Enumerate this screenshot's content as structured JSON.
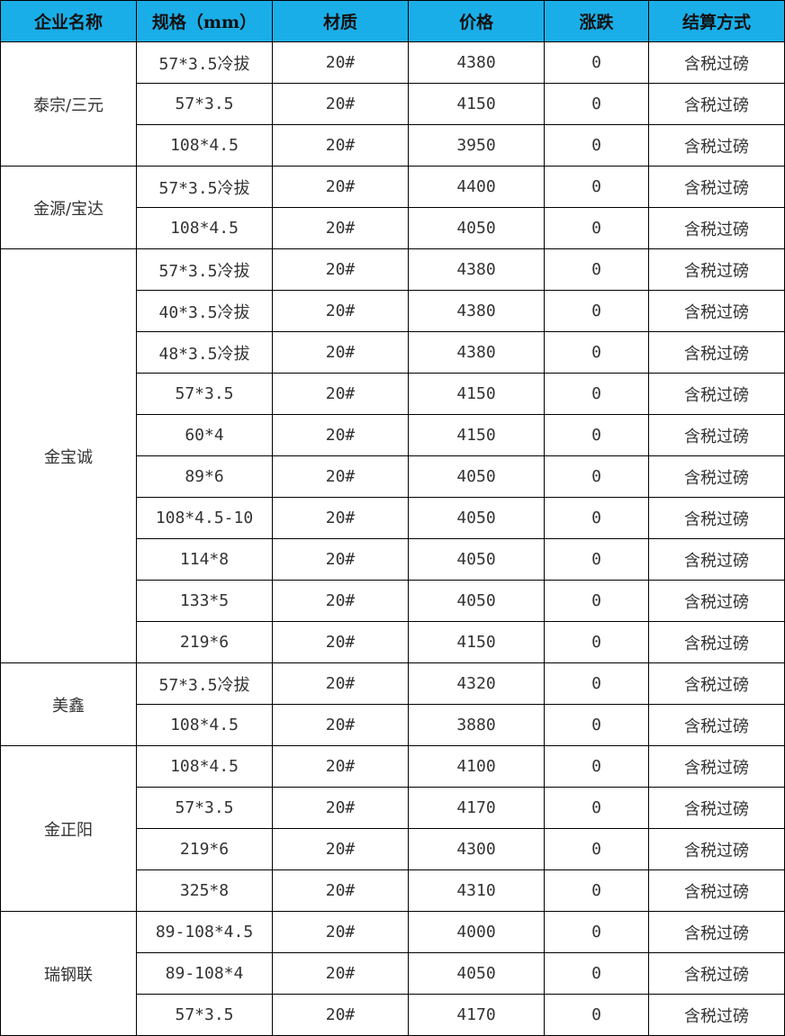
{
  "colors": {
    "header_bg": "#1AAEE8",
    "border": "#000000",
    "text": "#333333"
  },
  "headers": [
    "企业名称",
    "规格（mm）",
    "材质",
    "价格",
    "涨跌",
    "结算方式"
  ],
  "groups": [
    {
      "company": "泰宗/三元",
      "rows": [
        [
          "57*3.5冷拔",
          "20#",
          "4380",
          "0",
          "含税过磅"
        ],
        [
          "57*3.5",
          "20#",
          "4150",
          "0",
          "含税过磅"
        ],
        [
          "108*4.5",
          "20#",
          "3950",
          "0",
          "含税过磅"
        ]
      ]
    },
    {
      "company": "金源/宝达",
      "rows": [
        [
          "57*3.5冷拔",
          "20#",
          "4400",
          "0",
          "含税过磅"
        ],
        [
          "108*4.5",
          "20#",
          "4050",
          "0",
          "含税过磅"
        ]
      ]
    },
    {
      "company": "金宝诚",
      "rows": [
        [
          "57*3.5冷拔",
          "20#",
          "4380",
          "0",
          "含税过磅"
        ],
        [
          "40*3.5冷拔",
          "20#",
          "4380",
          "0",
          "含税过磅"
        ],
        [
          "48*3.5冷拔",
          "20#",
          "4380",
          "0",
          "含税过磅"
        ],
        [
          "57*3.5",
          "20#",
          "4150",
          "0",
          "含税过磅"
        ],
        [
          "60*4",
          "20#",
          "4150",
          "0",
          "含税过磅"
        ],
        [
          "89*6",
          "20#",
          "4050",
          "0",
          "含税过磅"
        ],
        [
          "108*4.5-10",
          "20#",
          "4050",
          "0",
          "含税过磅"
        ],
        [
          "114*8",
          "20#",
          "4050",
          "0",
          "含税过磅"
        ],
        [
          "133*5",
          "20#",
          "4050",
          "0",
          "含税过磅"
        ],
        [
          "219*6",
          "20#",
          "4150",
          "0",
          "含税过磅"
        ]
      ]
    },
    {
      "company": "美鑫",
      "rows": [
        [
          "57*3.5冷拔",
          "20#",
          "4320",
          "0",
          "含税过磅"
        ],
        [
          "108*4.5",
          "20#",
          "3880",
          "0",
          "含税过磅"
        ]
      ]
    },
    {
      "company": "金正阳",
      "rows": [
        [
          "108*4.5",
          "20#",
          "4100",
          "0",
          "含税过磅"
        ],
        [
          "57*3.5",
          "20#",
          "4170",
          "0",
          "含税过磅"
        ],
        [
          "219*6",
          "20#",
          "4300",
          "0",
          "含税过磅"
        ],
        [
          "325*8",
          "20#",
          "4310",
          "0",
          "含税过磅"
        ]
      ]
    },
    {
      "company": "瑞钢联",
      "rows": [
        [
          "89-108*4.5",
          "20#",
          "4000",
          "0",
          "含税过磅"
        ],
        [
          "89-108*4",
          "20#",
          "4050",
          "0",
          "含税过磅"
        ],
        [
          "57*3.5",
          "20#",
          "4170",
          "0",
          "含税过磅"
        ]
      ]
    }
  ]
}
